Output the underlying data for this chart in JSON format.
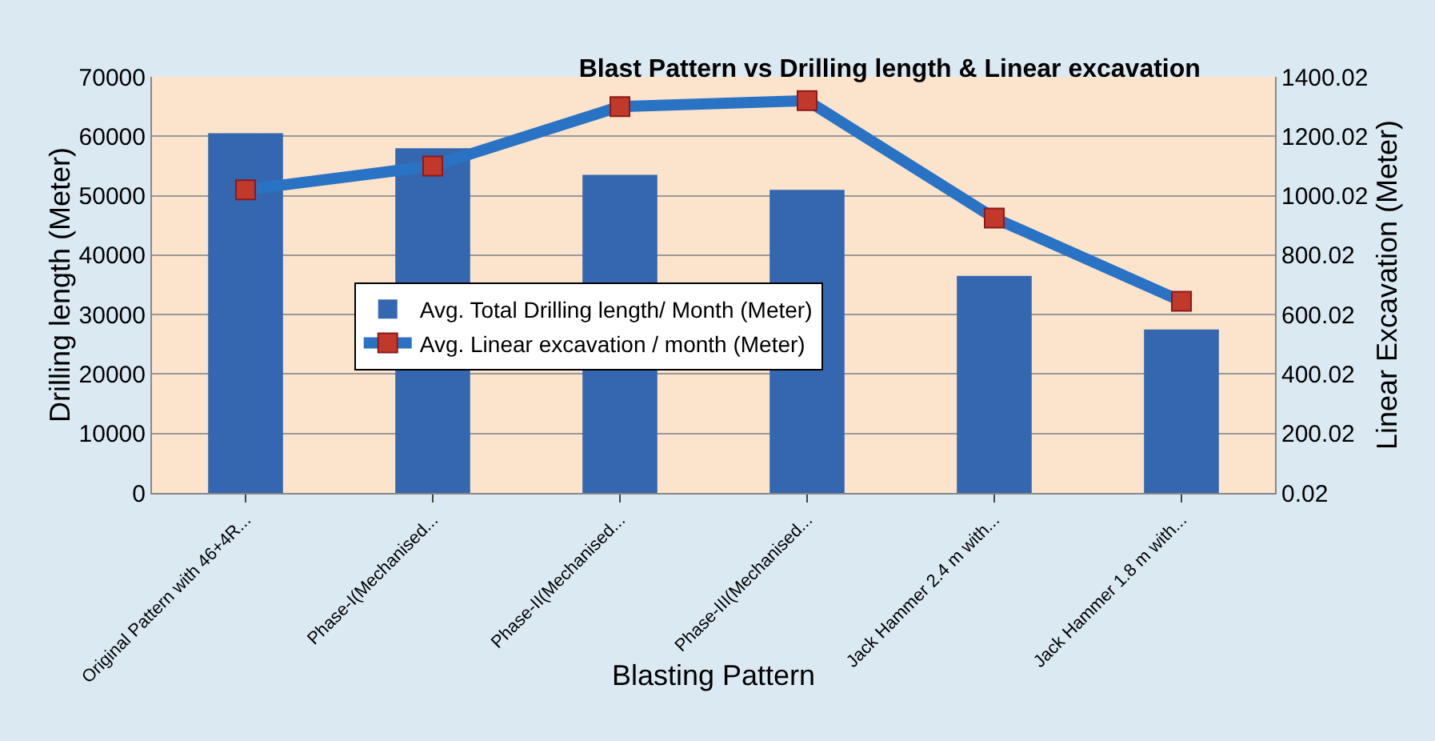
{
  "chart_data": {
    "type": "bar",
    "title": "Blast Pattern vs Drilling length & Linear excavation",
    "xlabel": "Blasting Pattern",
    "ylabel": "Drilling length (Meter)",
    "y2label": "Linear Excavation (Meter)",
    "categories": [
      "Original Pattern with 46+4R...",
      "Phase-I(Mechanised...",
      "Phase-II(Mechanised...",
      "Phase-III(Mechanised...",
      "Jack Hammer 2.4 m with...",
      "Jack Hammer 1.8 m with..."
    ],
    "series": [
      {
        "name": "Avg. Total Drilling length/ Month (Meter)",
        "color": "#3567b0",
        "values": [
          60500,
          58000,
          53500,
          51000,
          36500,
          27500
        ]
      },
      {
        "name": "Avg. Linear excavation / month (Meter)",
        "type": "line",
        "axis": "y2",
        "color": "#2a73c4",
        "marker": "square",
        "values": [
          1020,
          1100,
          1300,
          1320,
          925,
          645
        ]
      }
    ],
    "ylim": [
      0,
      70000
    ],
    "yticks": [
      0,
      10000,
      20000,
      30000,
      40000,
      50000,
      60000,
      70000
    ],
    "y2lim": [
      0.02,
      1400.02
    ],
    "y2ticks": [
      0.02,
      200.02,
      400.02,
      600.02,
      800.02,
      1000.02,
      1200.02,
      1400.02
    ],
    "grid": "y",
    "legend": "left"
  }
}
